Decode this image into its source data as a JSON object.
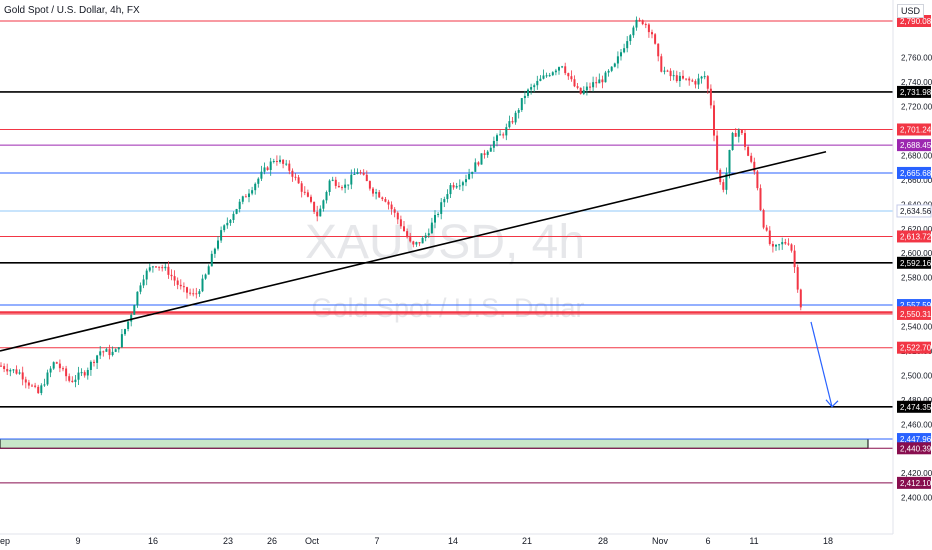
{
  "header": {
    "title": "Gold Spot / U.S. Dollar, 4h, FX",
    "currency": "USD"
  },
  "watermark": {
    "symbol": "XAUUSD, 4h",
    "name": "Gold Spot / U.S. Dollar"
  },
  "colors": {
    "up": "#089981",
    "down": "#f23645",
    "red_line": "#f23645",
    "black_line": "#000000",
    "blue_line": "#2962ff",
    "purple_line": "#9c27b0",
    "zone_fill": "#c8e6c9"
  },
  "chart_data": {
    "type": "candlestick",
    "title": "Gold Spot / U.S. Dollar, 4h, FX",
    "ylim": [
      2395,
      2810
    ],
    "y_ticks": [
      2400,
      2420,
      2460,
      2480,
      2500,
      2520,
      2540,
      2580,
      2600,
      2620,
      2640,
      2660,
      2680,
      2720,
      2740,
      2760
    ],
    "x_ticks": [
      "ep",
      "9",
      "16",
      "23",
      "26",
      "Oct",
      "7",
      "14",
      "21",
      "28",
      "Nov",
      "6",
      "11",
      "18"
    ],
    "close_path": [
      [
        0,
        2508
      ],
      [
        20,
        2502
      ],
      [
        38,
        2485
      ],
      [
        55,
        2512
      ],
      [
        70,
        2495
      ],
      [
        85,
        2503
      ],
      [
        100,
        2520
      ],
      [
        115,
        2518
      ],
      [
        130,
        2548
      ],
      [
        142,
        2580
      ],
      [
        155,
        2592
      ],
      [
        168,
        2585
      ],
      [
        182,
        2570
      ],
      [
        195,
        2565
      ],
      [
        205,
        2580
      ],
      [
        218,
        2612
      ],
      [
        232,
        2632
      ],
      [
        248,
        2650
      ],
      [
        262,
        2665
      ],
      [
        275,
        2678
      ],
      [
        290,
        2668
      ],
      [
        305,
        2648
      ],
      [
        318,
        2630
      ],
      [
        330,
        2660
      ],
      [
        345,
        2655
      ],
      [
        358,
        2668
      ],
      [
        372,
        2652
      ],
      [
        385,
        2645
      ],
      [
        400,
        2625
      ],
      [
        412,
        2605
      ],
      [
        424,
        2612
      ],
      [
        436,
        2630
      ],
      [
        450,
        2655
      ],
      [
        464,
        2660
      ],
      [
        478,
        2675
      ],
      [
        492,
        2690
      ],
      [
        505,
        2700
      ],
      [
        515,
        2712
      ],
      [
        525,
        2730
      ],
      [
        538,
        2740
      ],
      [
        550,
        2748
      ],
      [
        562,
        2755
      ],
      [
        570,
        2742
      ],
      [
        580,
        2730
      ],
      [
        592,
        2738
      ],
      [
        602,
        2742
      ],
      [
        614,
        2752
      ],
      [
        624,
        2770
      ],
      [
        634,
        2788
      ],
      [
        644,
        2790
      ],
      [
        652,
        2780
      ],
      [
        660,
        2752
      ],
      [
        670,
        2745
      ],
      [
        682,
        2742
      ],
      [
        695,
        2740
      ],
      [
        705,
        2745
      ],
      [
        712,
        2718
      ],
      [
        718,
        2660
      ],
      [
        724,
        2653
      ],
      [
        732,
        2695
      ],
      [
        740,
        2702
      ],
      [
        748,
        2680
      ],
      [
        756,
        2663
      ],
      [
        762,
        2628
      ],
      [
        772,
        2602
      ],
      [
        782,
        2608
      ],
      [
        790,
        2610
      ],
      [
        796,
        2582
      ],
      [
        802,
        2551
      ]
    ],
    "levels": [
      {
        "price": 2790.0,
        "label": "2,790.08",
        "color": "red"
      },
      {
        "price": 2731.98,
        "label": "2,731.98",
        "color": "black"
      },
      {
        "price": 2701.24,
        "label": "2,701.24",
        "color": "red"
      },
      {
        "price": 2688.45,
        "label": "2,688.45",
        "color": "purple"
      },
      {
        "price": 2665.68,
        "label": "2,665.68",
        "color": "blue"
      },
      {
        "price": 2634.56,
        "label": "2,634.56",
        "color": "lightblue"
      },
      {
        "price": 2613.72,
        "label": "2,613.72",
        "color": "red"
      },
      {
        "price": 2592.16,
        "label": "2,592.16",
        "color": "black"
      },
      {
        "price": 2557.59,
        "label": "2,557.59",
        "color": "blue"
      },
      {
        "price": 2551.7,
        "label": "2,551.70",
        "color": "red"
      },
      {
        "price": 2550.31,
        "label": "2,550.31",
        "color": "red"
      },
      {
        "price": 2522.7,
        "label": "2,522.70",
        "color": "red"
      },
      {
        "price": 2474.35,
        "label": "2,474.35",
        "color": "black"
      },
      {
        "price": 2447.96,
        "label": "2,447.96",
        "color": "blue"
      },
      {
        "price": 2440.39,
        "label": "2,440.39",
        "color": "maroon"
      },
      {
        "price": 2412.1,
        "label": "2,412.10",
        "color": "maroon"
      }
    ],
    "zone": {
      "from": 2440.39,
      "to": 2447.96
    },
    "trendline": {
      "x0_price": 2520,
      "x1_price": 2683
    },
    "projection": {
      "from": 2550.31,
      "to": 2474.35
    }
  }
}
